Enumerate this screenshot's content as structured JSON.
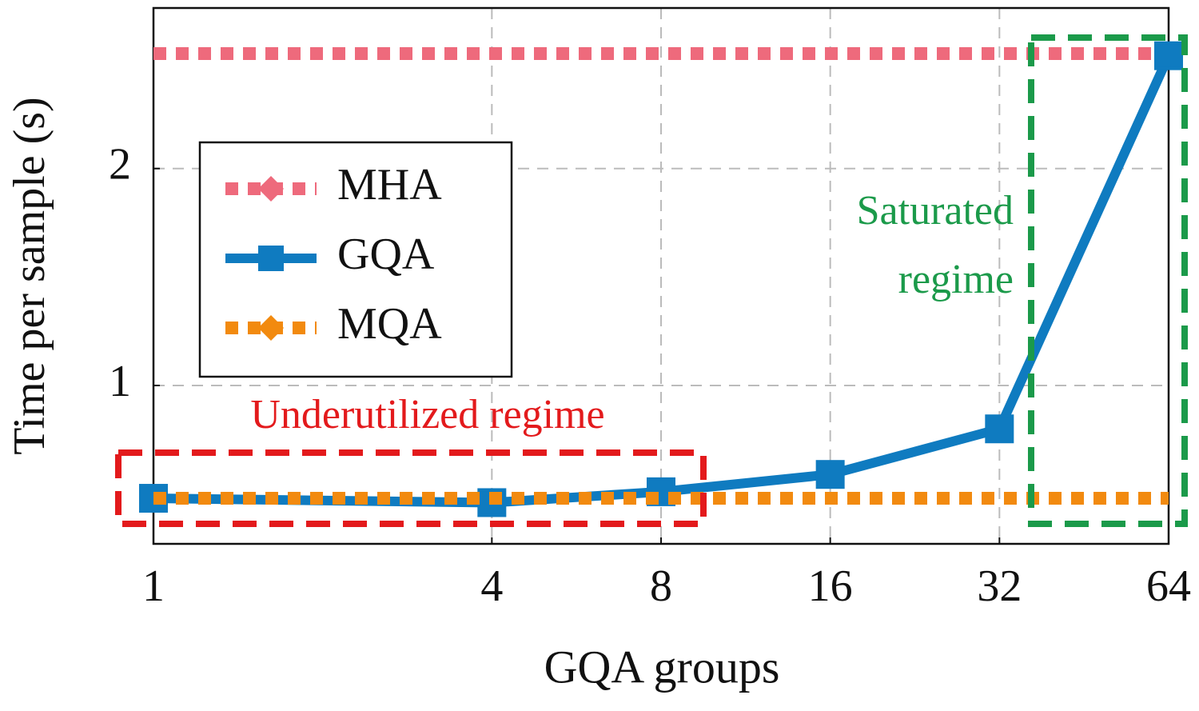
{
  "chart_data": {
    "type": "line",
    "x_label": "GQA groups",
    "y_label": "Time per sample (s)",
    "x": [
      1,
      4,
      8,
      16,
      32,
      64
    ],
    "xscale": "log2",
    "xlim": [
      1,
      64
    ],
    "xticks": [
      1,
      4,
      8,
      16,
      32,
      64
    ],
    "ylim": [
      0.27,
      2.74
    ],
    "yticks": [
      1,
      2
    ],
    "grid": true,
    "legend": "left",
    "series": [
      {
        "name": "MHA",
        "color": "#ee6a7c",
        "values": [
          2.53,
          2.53,
          2.53,
          2.53,
          2.53,
          2.53
        ]
      },
      {
        "name": "GQA",
        "color": "#0f7bc0",
        "values": [
          0.48,
          0.46,
          0.51,
          0.59,
          0.8,
          2.52
        ]
      },
      {
        "name": "MQA",
        "color": "#f28a0f",
        "values": [
          0.48,
          0.48,
          0.48,
          0.48,
          0.48,
          0.48
        ]
      }
    ],
    "annotations": [
      {
        "text": "Underutilized regime",
        "color": "#e31a1c"
      },
      {
        "lines": [
          "Saturated",
          "regime"
        ],
        "color": "#1b9a4a"
      }
    ]
  }
}
